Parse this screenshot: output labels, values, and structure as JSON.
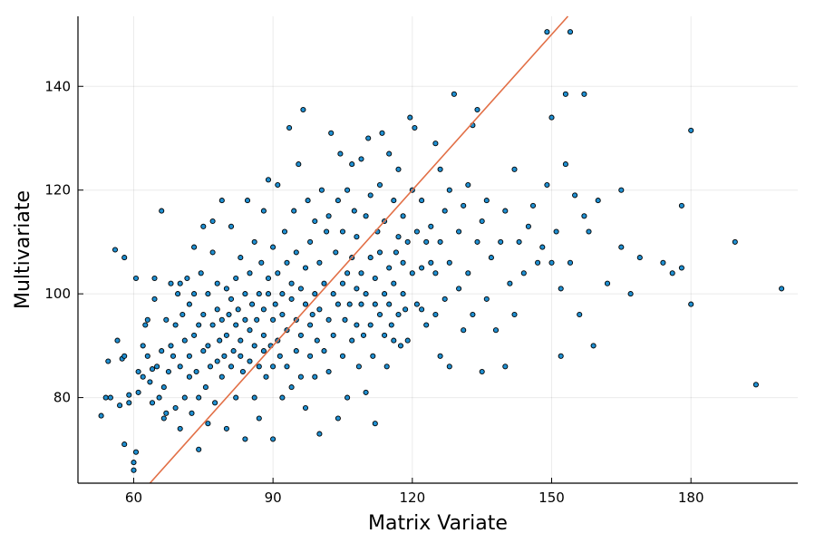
{
  "chart_data": {
    "type": "scatter",
    "title": "",
    "xlabel": "Matrix Variate",
    "ylabel": "Multivariate",
    "xlim": [
      48,
      203
    ],
    "ylim": [
      63.5,
      153.5
    ],
    "xticks": [
      60,
      90,
      120,
      150,
      180
    ],
    "yticks": [
      80,
      100,
      120,
      140
    ],
    "grid": true,
    "legend": "none",
    "colors": {
      "points": "#1f8fd1",
      "point_edge": "#000000",
      "line": "#e26f46",
      "axes": "#000000"
    },
    "reference_line": {
      "slope": 1,
      "intercept": 0,
      "from": [
        62,
        62
      ],
      "to": [
        155,
        155
      ]
    },
    "series": [
      {
        "points": [
          [
            53,
            76.5
          ],
          [
            54,
            80
          ],
          [
            54.5,
            87
          ],
          [
            55,
            80
          ],
          [
            56,
            108.5
          ],
          [
            56.5,
            91
          ],
          [
            57,
            78.5
          ],
          [
            57.5,
            87.5
          ],
          [
            58,
            88
          ],
          [
            58,
            107
          ],
          [
            58,
            71
          ],
          [
            59,
            79
          ],
          [
            59,
            80.5
          ],
          [
            60,
            66
          ],
          [
            60,
            67.5
          ],
          [
            60.5,
            69.5
          ],
          [
            60.5,
            103
          ],
          [
            61,
            81
          ],
          [
            61,
            85
          ],
          [
            62,
            84
          ],
          [
            62,
            90
          ],
          [
            62.5,
            94
          ],
          [
            63,
            88
          ],
          [
            63,
            95
          ],
          [
            63.5,
            83
          ],
          [
            64,
            79
          ],
          [
            64,
            85.5
          ],
          [
            64.5,
            99
          ],
          [
            64.5,
            103
          ],
          [
            65,
            86
          ],
          [
            65.5,
            80
          ],
          [
            66,
            89
          ],
          [
            66,
            116
          ],
          [
            66.5,
            76
          ],
          [
            66.5,
            82
          ],
          [
            67,
            77
          ],
          [
            67,
            95
          ],
          [
            67.5,
            85
          ],
          [
            68,
            90
          ],
          [
            68,
            102
          ],
          [
            68.5,
            88
          ],
          [
            69,
            78
          ],
          [
            69,
            94
          ],
          [
            69.5,
            100
          ],
          [
            70,
            74
          ],
          [
            70,
            86
          ],
          [
            70,
            102
          ],
          [
            70.5,
            96
          ],
          [
            71,
            80
          ],
          [
            71,
            91
          ],
          [
            71.5,
            103
          ],
          [
            72,
            84
          ],
          [
            72,
            88
          ],
          [
            72,
            98
          ],
          [
            72.5,
            77
          ],
          [
            73,
            92
          ],
          [
            73,
            100
          ],
          [
            73,
            109
          ],
          [
            73.5,
            85
          ],
          [
            74,
            70
          ],
          [
            74,
            80
          ],
          [
            74,
            94
          ],
          [
            74.5,
            104
          ],
          [
            75,
            89
          ],
          [
            75,
            96
          ],
          [
            75,
            113
          ],
          [
            75.5,
            82
          ],
          [
            76,
            75
          ],
          [
            76,
            90
          ],
          [
            76,
            100
          ],
          [
            76.5,
            86
          ],
          [
            77,
            94
          ],
          [
            77,
            108
          ],
          [
            77,
            114
          ],
          [
            77.5,
            79
          ],
          [
            78,
            87
          ],
          [
            78,
            97
          ],
          [
            78,
            102
          ],
          [
            78.5,
            91
          ],
          [
            79,
            84
          ],
          [
            79,
            95
          ],
          [
            79,
            118
          ],
          [
            79.5,
            88
          ],
          [
            80,
            74
          ],
          [
            80,
            92
          ],
          [
            80,
            101
          ],
          [
            80.5,
            96
          ],
          [
            81,
            86
          ],
          [
            81,
            99
          ],
          [
            81,
            113
          ],
          [
            81.5,
            89
          ],
          [
            82,
            80
          ],
          [
            82,
            94
          ],
          [
            82,
            103
          ],
          [
            82.5,
            97
          ],
          [
            83,
            88
          ],
          [
            83,
            91
          ],
          [
            83,
            107
          ],
          [
            83.5,
            85
          ],
          [
            84,
            72
          ],
          [
            84,
            95
          ],
          [
            84,
            100
          ],
          [
            84.5,
            118
          ],
          [
            85,
            87
          ],
          [
            85,
            93
          ],
          [
            85,
            104
          ],
          [
            85.5,
            98
          ],
          [
            86,
            80
          ],
          [
            86,
            90
          ],
          [
            86,
            110
          ],
          [
            86.5,
            95
          ],
          [
            87,
            76
          ],
          [
            87,
            86
          ],
          [
            87,
            100
          ],
          [
            87.5,
            106
          ],
          [
            88,
            89
          ],
          [
            88,
            92
          ],
          [
            88,
            97
          ],
          [
            88,
            116
          ],
          [
            88.5,
            84
          ],
          [
            89,
            100
          ],
          [
            89,
            103
          ],
          [
            89,
            122
          ],
          [
            89.5,
            90
          ],
          [
            90,
            72
          ],
          [
            90,
            86
          ],
          [
            90,
            95
          ],
          [
            90,
            109
          ],
          [
            90.5,
            98
          ],
          [
            91,
            91
          ],
          [
            91,
            104
          ],
          [
            91,
            121
          ],
          [
            91.5,
            88
          ],
          [
            92,
            80
          ],
          [
            92,
            96
          ],
          [
            92,
            100
          ],
          [
            92.5,
            112
          ],
          [
            93,
            86
          ],
          [
            93,
            93
          ],
          [
            93,
            106
          ],
          [
            93.5,
            132
          ],
          [
            94,
            82
          ],
          [
            94,
            99
          ],
          [
            94,
            102
          ],
          [
            94.5,
            116
          ],
          [
            95,
            89
          ],
          [
            95,
            95
          ],
          [
            95,
            108
          ],
          [
            95.5,
            125
          ],
          [
            96,
            84
          ],
          [
            96,
            92
          ],
          [
            96,
            101
          ],
          [
            96.5,
            135.5
          ],
          [
            97,
            78
          ],
          [
            97,
            98
          ],
          [
            97,
            105
          ],
          [
            97.5,
            118
          ],
          [
            98,
            88
          ],
          [
            98,
            94
          ],
          [
            98,
            110
          ],
          [
            98.5,
            96
          ],
          [
            99,
            84
          ],
          [
            99,
            100
          ],
          [
            99,
            114
          ],
          [
            99.5,
            91
          ],
          [
            100,
            73
          ],
          [
            100,
            97
          ],
          [
            100,
            106
          ],
          [
            100.5,
            120
          ],
          [
            101,
            89
          ],
          [
            101,
            102
          ],
          [
            101.5,
            112
          ],
          [
            102,
            85
          ],
          [
            102,
            95
          ],
          [
            102,
            115
          ],
          [
            102.5,
            131
          ],
          [
            103,
            92
          ],
          [
            103,
            100
          ],
          [
            103.5,
            108
          ],
          [
            104,
            76
          ],
          [
            104,
            98
          ],
          [
            104,
            118
          ],
          [
            104.5,
            127
          ],
          [
            105,
            88
          ],
          [
            105,
            102
          ],
          [
            105,
            112
          ],
          [
            105.5,
            95
          ],
          [
            106,
            80
          ],
          [
            106,
            104
          ],
          [
            106,
            120
          ],
          [
            106.5,
            98
          ],
          [
            107,
            91
          ],
          [
            107,
            107
          ],
          [
            107,
            125
          ],
          [
            107.5,
            116
          ],
          [
            108,
            94
          ],
          [
            108,
            101
          ],
          [
            108,
            111
          ],
          [
            108.5,
            86
          ],
          [
            109,
            98
          ],
          [
            109,
            104
          ],
          [
            109,
            126
          ],
          [
            109.5,
            92
          ],
          [
            110,
            81
          ],
          [
            110,
            100
          ],
          [
            110,
            115
          ],
          [
            110.5,
            130
          ],
          [
            111,
            94
          ],
          [
            111,
            107
          ],
          [
            111,
            119
          ],
          [
            111.5,
            88
          ],
          [
            112,
            75
          ],
          [
            112,
            98
          ],
          [
            112,
            103
          ],
          [
            112.5,
            112
          ],
          [
            113,
            96
          ],
          [
            113,
            108
          ],
          [
            113,
            121
          ],
          [
            113.5,
            131
          ],
          [
            114,
            92
          ],
          [
            114,
            100
          ],
          [
            114,
            114
          ],
          [
            114.5,
            86
          ],
          [
            115,
            98
          ],
          [
            115,
            105
          ],
          [
            115,
            127
          ],
          [
            115.5,
            94
          ],
          [
            116,
            91
          ],
          [
            116,
            102
          ],
          [
            116,
            118
          ],
          [
            116.5,
            108
          ],
          [
            117,
            96
          ],
          [
            117,
            111
          ],
          [
            117,
            124
          ],
          [
            117.5,
            90
          ],
          [
            118,
            100
          ],
          [
            118,
            106
          ],
          [
            118,
            115
          ],
          [
            118.5,
            97
          ],
          [
            119,
            91
          ],
          [
            119,
            110
          ],
          [
            119.5,
            134
          ],
          [
            120,
            104
          ],
          [
            120,
            120
          ],
          [
            120.5,
            132
          ],
          [
            121,
            98
          ],
          [
            121,
            112
          ],
          [
            122,
            97
          ],
          [
            122,
            105
          ],
          [
            122,
            118
          ],
          [
            123,
            94
          ],
          [
            123,
            110
          ],
          [
            124,
            106
          ],
          [
            124,
            113
          ],
          [
            125,
            96
          ],
          [
            125,
            104
          ],
          [
            125,
            129
          ],
          [
            126,
            88
          ],
          [
            126,
            110
          ],
          [
            126,
            124
          ],
          [
            127,
            99
          ],
          [
            127,
            116
          ],
          [
            128,
            86
          ],
          [
            128,
            106
          ],
          [
            128,
            120
          ],
          [
            129,
            138.5
          ],
          [
            130,
            101
          ],
          [
            130,
            112
          ],
          [
            131,
            93
          ],
          [
            131,
            117
          ],
          [
            132,
            104
          ],
          [
            132,
            121
          ],
          [
            133,
            96
          ],
          [
            133,
            132.5
          ],
          [
            134,
            110
          ],
          [
            134,
            135.5
          ],
          [
            135,
            85
          ],
          [
            135,
            114
          ],
          [
            136,
            99
          ],
          [
            136,
            118
          ],
          [
            137,
            107
          ],
          [
            138,
            93
          ],
          [
            139,
            110
          ],
          [
            140,
            86
          ],
          [
            140,
            116
          ],
          [
            141,
            102
          ],
          [
            142,
            96
          ],
          [
            142,
            124
          ],
          [
            143,
            110
          ],
          [
            144,
            104
          ],
          [
            145,
            113
          ],
          [
            146,
            117
          ],
          [
            147,
            106
          ],
          [
            148,
            109
          ],
          [
            149,
            150.5
          ],
          [
            149,
            121
          ],
          [
            150,
            134
          ],
          [
            150,
            106
          ],
          [
            151,
            112
          ],
          [
            152,
            101
          ],
          [
            152,
            88
          ],
          [
            153,
            138.5
          ],
          [
            153,
            125
          ],
          [
            154,
            106
          ],
          [
            154,
            150.5
          ],
          [
            155,
            119
          ],
          [
            156,
            96
          ],
          [
            157,
            115
          ],
          [
            157,
            138.5
          ],
          [
            158,
            112
          ],
          [
            159,
            90
          ],
          [
            160,
            118
          ],
          [
            162,
            102
          ],
          [
            165,
            120
          ],
          [
            165,
            109
          ],
          [
            167,
            100
          ],
          [
            169,
            107
          ],
          [
            174,
            106
          ],
          [
            176,
            104
          ],
          [
            178,
            117
          ],
          [
            178,
            105
          ],
          [
            180,
            131.5
          ],
          [
            180,
            98
          ],
          [
            189.5,
            110
          ],
          [
            194,
            82.5
          ],
          [
            199.5,
            101
          ]
        ]
      }
    ]
  }
}
